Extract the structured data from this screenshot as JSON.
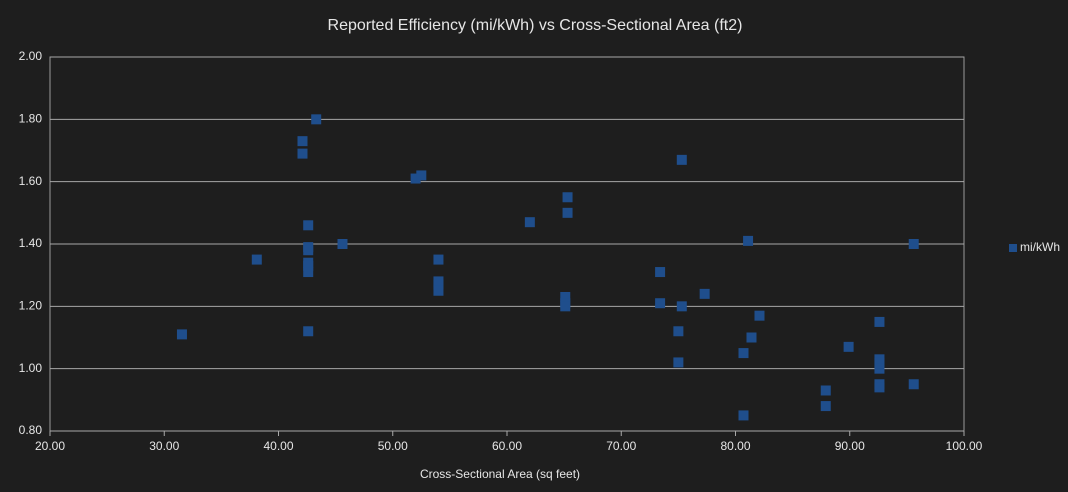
{
  "chart_data": {
    "type": "scatter",
    "title": "Reported Efficiency (mi/kWh) vs Cross-Sectional Area (ft2)",
    "x_label": "Cross-Sectional Area (sq feet)",
    "xlim": [
      20,
      100
    ],
    "xticks": [
      {
        "value": 20,
        "label": "20.00"
      },
      {
        "value": 30,
        "label": "30.00"
      },
      {
        "value": 40,
        "label": "40.00"
      },
      {
        "value": 50,
        "label": "50.00"
      },
      {
        "value": 60,
        "label": "60.00"
      },
      {
        "value": 70,
        "label": "70.00"
      },
      {
        "value": 80,
        "label": "80.00"
      },
      {
        "value": 90,
        "label": "90.00"
      },
      {
        "value": 100,
        "label": "100.00"
      }
    ],
    "ylim": [
      0.8,
      2.0
    ],
    "yticks": [
      {
        "value": 0.8,
        "label": "0.80"
      },
      {
        "value": 1.0,
        "label": "1.00"
      },
      {
        "value": 1.2,
        "label": "1.20"
      },
      {
        "value": 1.4,
        "label": "1.40"
      },
      {
        "value": 1.6,
        "label": "1.60"
      },
      {
        "value": 1.8,
        "label": "1.80"
      },
      {
        "value": 2.0,
        "label": "2.00"
      }
    ],
    "grid": true,
    "legend": "right",
    "series": [
      {
        "name": "mi/kWh",
        "color": "#1f4e8c",
        "x": [
          31.55,
          38.1,
          42.1,
          42.1,
          43.3,
          42.6,
          42.6,
          42.6,
          42.6,
          42.6,
          42.6,
          42.6,
          45.6,
          52.0,
          52.5,
          54.0,
          54.0,
          54.0,
          54.0,
          62.0,
          65.3,
          65.3,
          65.1,
          65.1,
          65.1,
          73.4,
          73.4,
          75.3,
          75.3,
          75.0,
          75.0,
          77.3,
          81.1,
          82.1,
          81.4,
          80.7,
          80.7,
          87.9,
          87.9,
          89.9,
          92.6,
          92.6,
          92.6,
          92.6,
          92.6,
          92.6,
          95.6,
          95.6
        ],
        "values": [
          1.11,
          1.35,
          1.73,
          1.69,
          1.8,
          1.46,
          1.39,
          1.38,
          1.34,
          1.33,
          1.31,
          1.12,
          1.4,
          1.61,
          1.62,
          1.35,
          1.28,
          1.27,
          1.25,
          1.47,
          1.55,
          1.5,
          1.23,
          1.21,
          1.2,
          1.31,
          1.21,
          1.67,
          1.2,
          1.12,
          1.02,
          1.24,
          1.41,
          1.17,
          1.1,
          1.05,
          0.85,
          0.93,
          0.88,
          1.07,
          1.15,
          1.03,
          1.02,
          1.0,
          0.95,
          0.94,
          1.4,
          0.95
        ]
      }
    ]
  }
}
